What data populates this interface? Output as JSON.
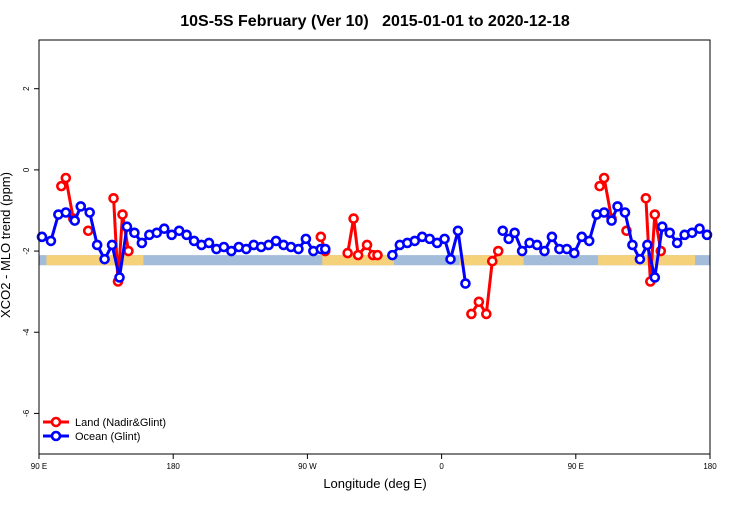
{
  "chart_data": {
    "type": "line",
    "title": "10S-5S February (Ver 10)   2015-01-01 to 2020-12-18",
    "xlabel": "Longitude (deg E)",
    "ylabel": "XCO2 - MLO trend (ppm)",
    "xlim": [
      90,
      540
    ],
    "ylim": [
      -7,
      3.2
    ],
    "x_tick_values": [
      90,
      180,
      270,
      360,
      450,
      540
    ],
    "x_tick_labels": [
      "90 E",
      "180",
      "90 W",
      "0",
      "90 E",
      "180"
    ],
    "y_tick_values": [
      2,
      0,
      -2,
      -4,
      -6
    ],
    "y_tick_labels": [
      "2",
      "0",
      "-2",
      "-4",
      "-6"
    ],
    "grid": false,
    "legend_position": "bottom-left",
    "land_band": {
      "y_range": [
        -2.35,
        -2.1
      ],
      "ocean_color": "#a3bcd9",
      "land_color": "#f5d27a",
      "land_segments": [
        [
          95,
          160
        ],
        [
          280,
          328
        ],
        [
          372,
          415
        ],
        [
          465,
          530
        ]
      ]
    },
    "series": [
      {
        "name": "Land (Nadir&Glint)",
        "color": "#ff0000",
        "segments": [
          [
            [
              105,
              -0.4
            ],
            [
              108,
              -0.2
            ],
            [
              113,
              -1.2
            ]
          ],
          [
            [
              123,
              -1.5
            ]
          ],
          [
            [
              140,
              -0.7
            ],
            [
              143,
              -2.75
            ],
            [
              146,
              -1.1
            ],
            [
              150,
              -2.0
            ]
          ],
          [
            [
              279,
              -1.65
            ],
            [
              282,
              -2.0
            ]
          ],
          [
            [
              297,
              -2.05
            ],
            [
              301,
              -1.2
            ],
            [
              304,
              -2.1
            ],
            [
              310,
              -1.85
            ],
            [
              314,
              -2.1
            ],
            [
              317,
              -2.1
            ]
          ],
          [
            [
              380,
              -3.55
            ],
            [
              385,
              -3.25
            ],
            [
              390,
              -3.55
            ],
            [
              394,
              -2.25
            ],
            [
              398,
              -2.0
            ]
          ],
          [
            [
              466,
              -0.4
            ],
            [
              469,
              -0.2
            ],
            [
              474,
              -1.2
            ]
          ],
          [
            [
              484,
              -1.5
            ]
          ],
          [
            [
              497,
              -0.7
            ],
            [
              500,
              -2.75
            ],
            [
              503,
              -1.1
            ],
            [
              507,
              -2.0
            ]
          ]
        ]
      },
      {
        "name": "Ocean (Glint)",
        "color": "#0000ff",
        "segments": [
          [
            [
              92,
              -1.65
            ],
            [
              98,
              -1.75
            ],
            [
              103,
              -1.1
            ],
            [
              108,
              -1.05
            ],
            [
              114,
              -1.25
            ],
            [
              118,
              -0.9
            ],
            [
              124,
              -1.05
            ],
            [
              129,
              -1.85
            ],
            [
              134,
              -2.2
            ],
            [
              139,
              -1.85
            ],
            [
              144,
              -2.65
            ],
            [
              149,
              -1.4
            ],
            [
              154,
              -1.55
            ],
            [
              159,
              -1.8
            ],
            [
              164,
              -1.6
            ],
            [
              169,
              -1.55
            ],
            [
              174,
              -1.45
            ],
            [
              179,
              -1.6
            ],
            [
              184,
              -1.5
            ],
            [
              189,
              -1.6
            ],
            [
              194,
              -1.75
            ],
            [
              199,
              -1.85
            ],
            [
              204,
              -1.8
            ],
            [
              209,
              -1.95
            ],
            [
              214,
              -1.9
            ],
            [
              219,
              -2.0
            ],
            [
              224,
              -1.9
            ],
            [
              229,
              -1.95
            ],
            [
              234,
              -1.85
            ],
            [
              239,
              -1.9
            ],
            [
              244,
              -1.85
            ],
            [
              249,
              -1.75
            ],
            [
              254,
              -1.85
            ],
            [
              259,
              -1.9
            ],
            [
              264,
              -1.95
            ],
            [
              269,
              -1.7
            ],
            [
              274,
              -2.0
            ],
            [
              279,
              -1.95
            ],
            [
              282,
              -1.95
            ]
          ],
          [
            [
              327,
              -2.1
            ],
            [
              332,
              -1.85
            ],
            [
              337,
              -1.8
            ],
            [
              342,
              -1.75
            ],
            [
              347,
              -1.65
            ],
            [
              352,
              -1.7
            ],
            [
              357,
              -1.8
            ],
            [
              362,
              -1.7
            ],
            [
              366,
              -2.2
            ],
            [
              371,
              -1.5
            ],
            [
              376,
              -2.8
            ]
          ],
          [
            [
              401,
              -1.5
            ],
            [
              405,
              -1.7
            ],
            [
              409,
              -1.55
            ],
            [
              414,
              -2.0
            ],
            [
              419,
              -1.8
            ],
            [
              424,
              -1.85
            ],
            [
              429,
              -2.0
            ],
            [
              434,
              -1.65
            ],
            [
              439,
              -1.95
            ],
            [
              444,
              -1.95
            ],
            [
              449,
              -2.05
            ],
            [
              454,
              -1.65
            ],
            [
              459,
              -1.75
            ],
            [
              464,
              -1.1
            ],
            [
              469,
              -1.05
            ],
            [
              474,
              -1.25
            ],
            [
              478,
              -0.9
            ],
            [
              483,
              -1.05
            ],
            [
              488,
              -1.85
            ],
            [
              493,
              -2.2
            ],
            [
              498,
              -1.85
            ],
            [
              503,
              -2.65
            ],
            [
              508,
              -1.4
            ],
            [
              513,
              -1.55
            ],
            [
              518,
              -1.8
            ],
            [
              523,
              -1.6
            ],
            [
              528,
              -1.55
            ],
            [
              533,
              -1.45
            ],
            [
              538,
              -1.6
            ]
          ]
        ]
      }
    ]
  }
}
